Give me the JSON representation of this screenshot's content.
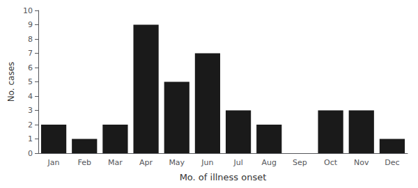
{
  "chart_data": {
    "type": "bar",
    "categories": [
      "Jan",
      "Feb",
      "Mar",
      "Apr",
      "May",
      "Jun",
      "Jul",
      "Aug",
      "Sep",
      "Oct",
      "Nov",
      "Dec"
    ],
    "values": [
      2,
      1,
      2,
      9,
      5,
      7,
      3,
      2,
      0,
      3,
      3,
      1
    ],
    "color": "#1a1a1a",
    "xlabel": "Mo. of illness onset",
    "ylabel": "No. cases",
    "ylim": [
      0,
      10
    ],
    "yticks": [
      0,
      1,
      2,
      3,
      4,
      5,
      6,
      7,
      8,
      9,
      10
    ],
    "grid": false
  }
}
